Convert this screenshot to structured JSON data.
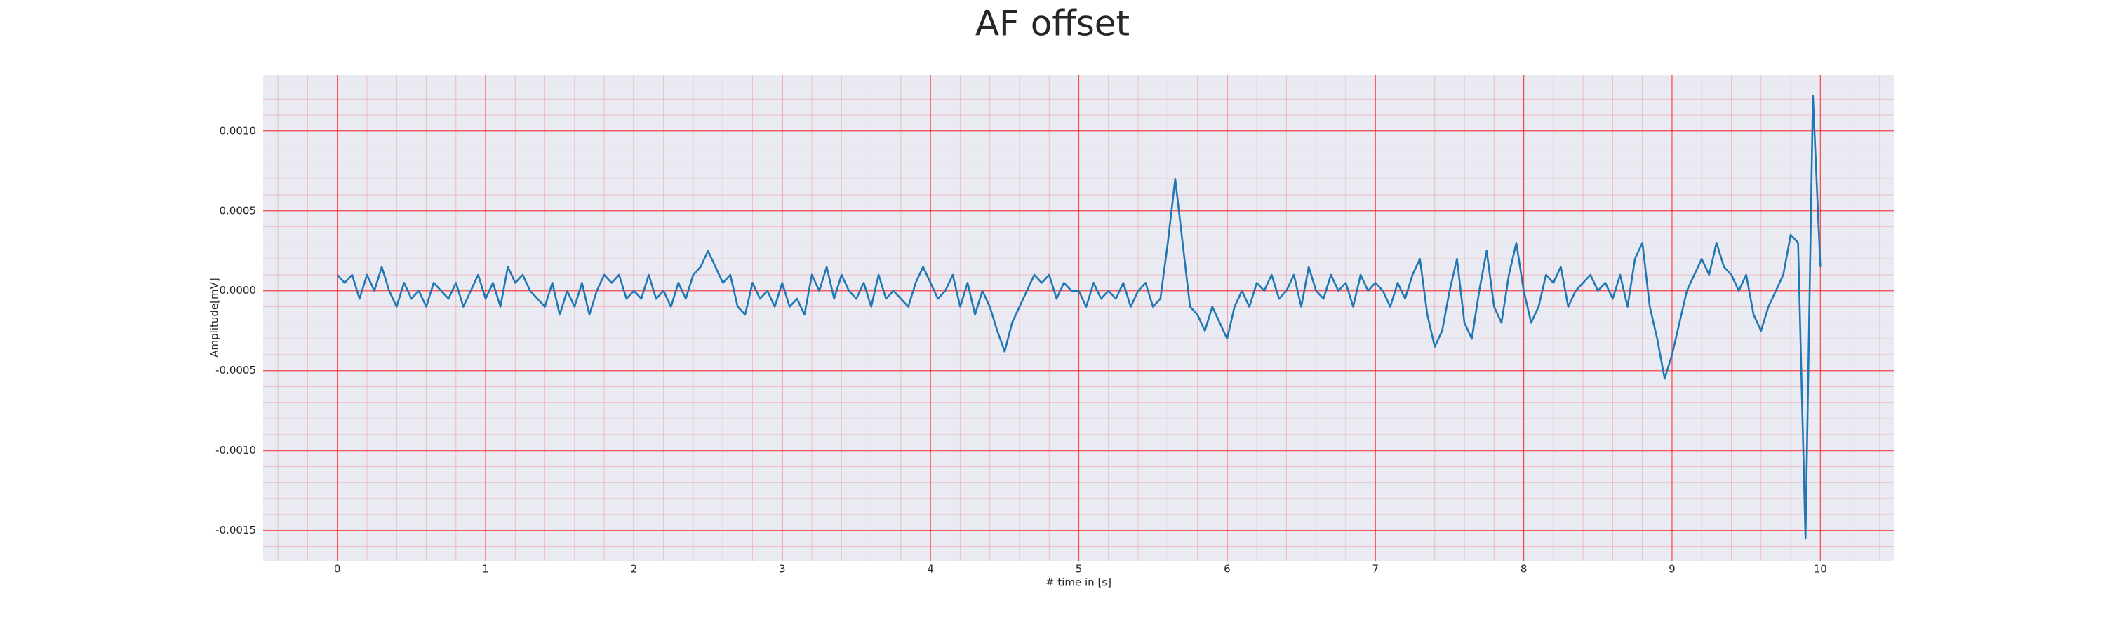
{
  "chart_data": {
    "type": "line",
    "title": "AF offset",
    "xlabel": "# time in [s]",
    "ylabel": "Amplitude[mV]",
    "xlim": [
      -0.5,
      10.5
    ],
    "ylim": [
      -0.00169,
      0.00135
    ],
    "xticks": [
      0,
      1,
      2,
      3,
      4,
      5,
      6,
      7,
      8,
      9,
      10
    ],
    "yticks": [
      {
        "value": 0.001,
        "label": "0.0010"
      },
      {
        "value": 0.0005,
        "label": "0.0005"
      },
      {
        "value": 0,
        "label": "0.0000"
      },
      {
        "value": -0.0005,
        "label": "-0.0005"
      },
      {
        "value": -0.001,
        "label": "-0.0010"
      },
      {
        "value": -0.0015,
        "label": "-0.0015"
      }
    ],
    "grid": true,
    "minor_grid": true,
    "grid_color": "#ff0000",
    "background": "#eaeaf2",
    "series": [
      {
        "color": "#1f77b4",
        "x": [
          0,
          0.05,
          0.1,
          0.15,
          0.2,
          0.25,
          0.3,
          0.35,
          0.4,
          0.45,
          0.5,
          0.55,
          0.6,
          0.65,
          0.7,
          0.75,
          0.8,
          0.85,
          0.9,
          0.95,
          1,
          1.05,
          1.1,
          1.15,
          1.2,
          1.25,
          1.3,
          1.35,
          1.4,
          1.45,
          1.5,
          1.55,
          1.6,
          1.65,
          1.7,
          1.75,
          1.8,
          1.85,
          1.9,
          1.95,
          2,
          2.05,
          2.1,
          2.15,
          2.2,
          2.25,
          2.3,
          2.35,
          2.4,
          2.45,
          2.5,
          2.55,
          2.6,
          2.65,
          2.7,
          2.75,
          2.8,
          2.85,
          2.9,
          2.95,
          3,
          3.05,
          3.1,
          3.15,
          3.2,
          3.25,
          3.3,
          3.35,
          3.4,
          3.45,
          3.5,
          3.55,
          3.6,
          3.65,
          3.7,
          3.75,
          3.8,
          3.85,
          3.9,
          3.95,
          4,
          4.05,
          4.1,
          4.15,
          4.2,
          4.25,
          4.3,
          4.35,
          4.4,
          4.45,
          4.5,
          4.55,
          4.6,
          4.65,
          4.7,
          4.75,
          4.8,
          4.85,
          4.9,
          4.95,
          5,
          5.05,
          5.1,
          5.15,
          5.2,
          5.25,
          5.3,
          5.35,
          5.4,
          5.45,
          5.5,
          5.55,
          5.6,
          5.65,
          5.7,
          5.75,
          5.8,
          5.85,
          5.9,
          5.95,
          6,
          6.05,
          6.1,
          6.15,
          6.2,
          6.25,
          6.3,
          6.35,
          6.4,
          6.45,
          6.5,
          6.55,
          6.6,
          6.65,
          6.7,
          6.75,
          6.8,
          6.85,
          6.9,
          6.95,
          7,
          7.05,
          7.1,
          7.15,
          7.2,
          7.25,
          7.3,
          7.35,
          7.4,
          7.45,
          7.5,
          7.55,
          7.6,
          7.65,
          7.7,
          7.75,
          7.8,
          7.85,
          7.9,
          7.95,
          8,
          8.05,
          8.1,
          8.15,
          8.2,
          8.25,
          8.3,
          8.35,
          8.4,
          8.45,
          8.5,
          8.55,
          8.6,
          8.65,
          8.7,
          8.75,
          8.8,
          8.85,
          8.9,
          8.95,
          9,
          9.05,
          9.1,
          9.15,
          9.2,
          9.25,
          9.3,
          9.35,
          9.4,
          9.45,
          9.5,
          9.55,
          9.6,
          9.65,
          9.7,
          9.75,
          9.8,
          9.85,
          9.9,
          9.95,
          10
        ],
        "values": [
          0.0001,
          5e-05,
          0.0001,
          -5e-05,
          0.0001,
          0,
          0.00015,
          0,
          -0.0001,
          5e-05,
          -5e-05,
          0,
          -0.0001,
          5e-05,
          0,
          -5e-05,
          5e-05,
          -0.0001,
          0,
          0.0001,
          -5e-05,
          5e-05,
          -0.0001,
          0.00015,
          5e-05,
          0.0001,
          0,
          -5e-05,
          -0.0001,
          5e-05,
          -0.00015,
          0,
          -0.0001,
          5e-05,
          -0.00015,
          0,
          0.0001,
          5e-05,
          0.0001,
          -5e-05,
          0,
          -5e-05,
          0.0001,
          -5e-05,
          0,
          -0.0001,
          5e-05,
          -5e-05,
          0.0001,
          0.00015,
          0.00025,
          0.00015,
          5e-05,
          0.0001,
          -0.0001,
          -0.00015,
          5e-05,
          -5e-05,
          0,
          -0.0001,
          5e-05,
          -0.0001,
          -5e-05,
          -0.00015,
          0.0001,
          0,
          0.00015,
          -5e-05,
          0.0001,
          0,
          -5e-05,
          5e-05,
          -0.0001,
          0.0001,
          -5e-05,
          0,
          -5e-05,
          -0.0001,
          5e-05,
          0.00015,
          5e-05,
          -5e-05,
          0,
          0.0001,
          -0.0001,
          5e-05,
          -0.00015,
          0,
          -0.0001,
          -0.00025,
          -0.00038,
          -0.0002,
          -0.0001,
          0,
          0.0001,
          5e-05,
          0.0001,
          -5e-05,
          5e-05,
          0,
          0,
          -0.0001,
          5e-05,
          -5e-05,
          0,
          -5e-05,
          5e-05,
          -0.0001,
          0,
          5e-05,
          -0.0001,
          -5e-05,
          0.0003,
          0.0007,
          0.0003,
          -0.0001,
          -0.00015,
          -0.00025,
          -0.0001,
          -0.0002,
          -0.0003,
          -0.0001,
          0,
          -0.0001,
          5e-05,
          0,
          0.0001,
          -5e-05,
          0,
          0.0001,
          -0.0001,
          0.00015,
          0,
          -5e-05,
          0.0001,
          0,
          5e-05,
          -0.0001,
          0.0001,
          0,
          5e-05,
          0,
          -0.0001,
          5e-05,
          -5e-05,
          0.0001,
          0.0002,
          -0.00015,
          -0.00035,
          -0.00025,
          0,
          0.0002,
          -0.0002,
          -0.0003,
          0,
          0.00025,
          -0.0001,
          -0.0002,
          0.0001,
          0.0003,
          0,
          -0.0002,
          -0.0001,
          0.0001,
          5e-05,
          0.00015,
          -0.0001,
          0,
          5e-05,
          0.0001,
          0,
          5e-05,
          -5e-05,
          0.0001,
          -0.0001,
          0.0002,
          0.0003,
          -0.0001,
          -0.0003,
          -0.00055,
          -0.0004,
          -0.0002,
          0,
          0.0001,
          0.0002,
          0.0001,
          0.0003,
          0.00015,
          0.0001,
          0,
          0.0001,
          -0.00015,
          -0.00025,
          -0.0001,
          0,
          0.0001,
          0.00035,
          0.0003,
          -0.00155,
          0.00122,
          0.00015
        ]
      }
    ]
  }
}
